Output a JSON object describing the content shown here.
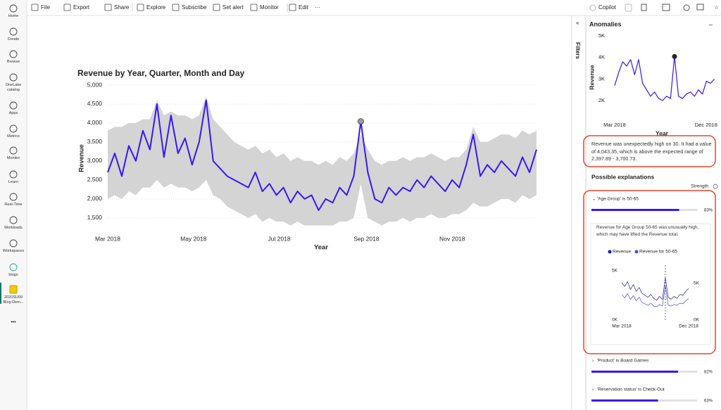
{
  "app": {
    "nav": [
      {
        "label": "Home"
      },
      {
        "label": "Create"
      },
      {
        "label": "Browse"
      },
      {
        "label": "OneLake catalog"
      },
      {
        "label": "Apps"
      },
      {
        "label": "Metrics"
      },
      {
        "label": "Monitor"
      },
      {
        "label": "Learn"
      },
      {
        "label": "Real-Time"
      },
      {
        "label": "Workloads"
      },
      {
        "label": "Workspaces"
      },
      {
        "label": "blogs"
      },
      {
        "label": "2020SU09 Blog Dem..."
      }
    ],
    "nav_more": "•••",
    "toolbar": [
      "File",
      "Export",
      "Share",
      "Explore",
      "Subscribe",
      "Set alert",
      "Monitor",
      "Edit"
    ],
    "toolbar_more": "···",
    "copilot": "Copilot",
    "filters": "Filters",
    "pane": {
      "title": "Anomalies",
      "summary": "Revenue was unexpectedly high on 30. It had a value of 4,043.35, which is above the expected range of 2,397.89 - 3,700.73.",
      "explanations_title": "Possible explanations",
      "strength_title": "Strength",
      "factors": [
        {
          "label": "'Age Group' is 50-65",
          "strength": 83,
          "strength_label": "83%",
          "detail": "Revenue for Age Group 50-65 was unusually high, which may have lifted the Revenue total."
        },
        {
          "label": "'Product' is Board Games",
          "strength": 82,
          "strength_label": "82%"
        },
        {
          "label": "'Reservation status' is Check-Out",
          "strength": 63,
          "strength_label": "63%"
        }
      ]
    }
  },
  "chart_data": [
    {
      "type": "line",
      "title": "Revenue by Year, Quarter, Month and Day",
      "x_label": "Year",
      "y_label": "Revenue",
      "x": [
        0,
        5,
        10,
        15,
        20,
        25,
        30,
        35,
        40,
        45,
        50,
        55,
        60,
        65,
        70,
        75,
        80,
        85,
        90,
        95,
        100,
        105,
        110,
        115,
        120,
        125,
        130,
        135,
        140,
        145,
        150,
        155,
        160,
        165,
        170,
        175,
        180,
        185,
        190,
        195,
        200,
        205,
        210,
        215,
        220,
        225,
        230,
        235,
        240,
        245,
        250,
        255,
        260,
        265,
        270,
        275,
        280,
        285,
        290,
        295,
        300,
        305
      ],
      "xlim": [
        0,
        305
      ],
      "xticks": [
        {
          "value": 0,
          "label": "Mar 2018"
        },
        {
          "value": 61,
          "label": "May 2018"
        },
        {
          "value": 122,
          "label": "Jul 2018"
        },
        {
          "value": 184,
          "label": "Sep 2018"
        },
        {
          "value": 245,
          "label": "Nov 2018"
        }
      ],
      "ylim": [
        1200,
        5000
      ],
      "yticks": [
        {
          "value": 1500,
          "label": "1,500"
        },
        {
          "value": 2000,
          "label": "2,000"
        },
        {
          "value": 2500,
          "label": "2,500"
        },
        {
          "value": 3000,
          "label": "3,000"
        },
        {
          "value": 3500,
          "label": "3,500"
        },
        {
          "value": 4000,
          "label": "4,000"
        },
        {
          "value": 4500,
          "label": "4,500"
        },
        {
          "value": 5000,
          "label": "5,000"
        }
      ],
      "grid": true,
      "series": [
        {
          "name": "Revenue",
          "color": "#3a17f0",
          "values": [
            2700,
            3200,
            2600,
            3400,
            3000,
            3800,
            3300,
            4500,
            3100,
            4200,
            3200,
            3600,
            2900,
            3500,
            4600,
            3000,
            2800,
            2600,
            2500,
            2400,
            2300,
            2700,
            2200,
            2400,
            2100,
            2300,
            1900,
            2200,
            2000,
            2100,
            1700,
            2000,
            1900,
            2300,
            2100,
            2600,
            4043.35,
            2700,
            2000,
            1900,
            2300,
            2100,
            2300,
            2200,
            2500,
            2300,
            2600,
            2400,
            2200,
            2500,
            2300,
            2900,
            3700,
            2600,
            2900,
            2700,
            3000,
            2800,
            2600,
            3100,
            2700,
            3300
          ]
        }
      ],
      "expected_range": {
        "color": "#d4d4d4",
        "upper": [
          3800,
          3900,
          3900,
          4000,
          4000,
          4100,
          4100,
          4600,
          4200,
          4300,
          4200,
          4200,
          4100,
          4200,
          4700,
          4100,
          3900,
          3700,
          3500,
          3400,
          3300,
          3400,
          3200,
          3300,
          3100,
          3200,
          3000,
          3100,
          3000,
          3000,
          2900,
          3000,
          2900,
          3100,
          3000,
          3200,
          3700.73,
          3300,
          3000,
          2900,
          3000,
          3000,
          3100,
          3000,
          3100,
          3100,
          3200,
          3100,
          3000,
          3100,
          3100,
          3300,
          3900,
          3500,
          3500,
          3600,
          3700,
          3700,
          3600,
          3800,
          3700,
          3800
        ],
        "lower": [
          2000,
          2100,
          2000,
          2200,
          2100,
          2300,
          2300,
          2500,
          2300,
          2400,
          2300,
          2300,
          2200,
          2300,
          2500,
          2100,
          2000,
          1800,
          1700,
          1600,
          1500,
          1600,
          1400,
          1500,
          1400,
          1400,
          1300,
          1400,
          1300,
          1300,
          1300,
          1300,
          1300,
          1400,
          1400,
          1500,
          2397.89,
          1500,
          1400,
          1300,
          1400,
          1400,
          1500,
          1400,
          1500,
          1500,
          1600,
          1500,
          1500,
          1600,
          1600,
          1700,
          1900,
          1800,
          1800,
          1900,
          2000,
          2000,
          1900,
          2100,
          2000,
          2100
        ]
      }
    },
    {
      "type": "line",
      "x_label": "Year",
      "y_label": "Revenue",
      "highlight": "max",
      "x": [
        0,
        12,
        24,
        36,
        48,
        60,
        72,
        84,
        96,
        108,
        120,
        132,
        144,
        156,
        168,
        180,
        192,
        204,
        216,
        228,
        240,
        252,
        264,
        276,
        288,
        300
      ],
      "xlim": [
        0,
        305
      ],
      "xticks": [
        {
          "value": 0,
          "label": "Mar 2018"
        },
        {
          "value": 275,
          "label": "Dec 2018"
        }
      ],
      "ylim": [
        1300,
        5000
      ],
      "yticks": [
        {
          "value": 2000,
          "label": "2K"
        },
        {
          "value": 3000,
          "label": "3K"
        },
        {
          "value": 4000,
          "label": "4K"
        },
        {
          "value": 5000,
          "label": "5K"
        }
      ],
      "grid": false,
      "series": [
        {
          "name": "Revenue",
          "color": "#3a17f0",
          "values": [
            2700,
            3300,
            3800,
            3600,
            3900,
            3200,
            3900,
            2800,
            2500,
            2200,
            2400,
            2100,
            2000,
            2200,
            2100,
            4043.35,
            2200,
            2100,
            2300,
            2400,
            2200,
            2500,
            2300,
            2900,
            2800,
            3000
          ]
        }
      ]
    },
    {
      "type": "line",
      "highlight": "max-line",
      "legend": true,
      "x": [
        0,
        12,
        24,
        36,
        48,
        60,
        72,
        84,
        96,
        108,
        120,
        132,
        144,
        156,
        168,
        180,
        192,
        204,
        216,
        228,
        240,
        252,
        264,
        276
      ],
      "xlim": [
        0,
        276
      ],
      "xticks": [
        {
          "value": 0,
          "label": "Mar 2018"
        },
        {
          "value": 276,
          "label": "Dec 2018"
        }
      ],
      "ylim": [
        0,
        5000
      ],
      "yticks": [
        {
          "value": 0,
          "label": "0K"
        },
        {
          "value": 5000,
          "label": "5K"
        }
      ],
      "y2lim": [
        0,
        6700
      ],
      "y2ticks": [
        {
          "value": 0,
          "label": "0K"
        },
        {
          "value": 5000,
          "label": "5K"
        }
      ],
      "grid": false,
      "series": [
        {
          "name": "Revenue",
          "color": "#1f1f8f",
          "values": [
            3800,
            3400,
            3900,
            3100,
            3600,
            2900,
            3300,
            2700,
            2500,
            2300,
            2600,
            2200,
            2000,
            2400,
            2100,
            4300,
            2300,
            2100,
            2400,
            2200,
            2600,
            2500,
            2900,
            3200
          ]
        },
        {
          "name": "Revenue for 50-65",
          "color": "#4a4ae0",
          "axis": "y2",
          "values": [
            3500,
            3000,
            3600,
            2800,
            3300,
            2600,
            3100,
            2400,
            2200,
            2000,
            2300,
            1900,
            1800,
            2100,
            1900,
            4700,
            2000,
            1900,
            2100,
            2000,
            2300,
            2200,
            2600,
            2900
          ]
        }
      ]
    }
  ]
}
